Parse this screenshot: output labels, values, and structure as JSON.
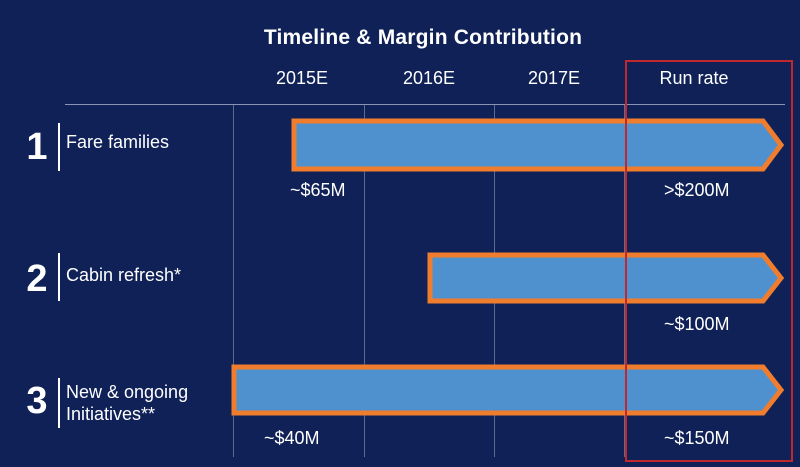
{
  "title": "Timeline & Margin Contribution",
  "columns": [
    "2015E",
    "2016E",
    "2017E",
    "Run rate"
  ],
  "colors": {
    "background": "#0f2157",
    "bar_fill": "#4f91cf",
    "bar_outline": "#ef7d2d",
    "highlight_box": "#c0282e"
  },
  "rows": [
    {
      "number": "1",
      "label": "Fare families",
      "start_value": "~$65M",
      "run_rate_value": ">$200M"
    },
    {
      "number": "2",
      "label": "Cabin refresh*",
      "start_value": "",
      "run_rate_value": "~$100M"
    },
    {
      "number": "3",
      "label_line1": "New & ongoing",
      "label_line2": "Initiatives**",
      "start_value": "~$40M",
      "run_rate_value": "~$150M"
    }
  ]
}
